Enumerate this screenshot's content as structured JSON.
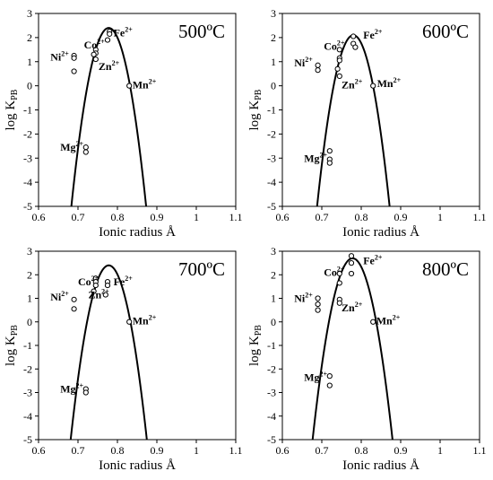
{
  "chart_data": [
    {
      "type": "scatter",
      "title": "500ºC",
      "xlabel": "Ionic radius Å",
      "ylabel": "log K",
      "ylabel_sub": "PB",
      "xlim": [
        0.6,
        1.1
      ],
      "ylim": [
        -5,
        3
      ],
      "xticks": [
        "0.6",
        "0.7",
        "0.8",
        "0.9",
        "1",
        "1.1"
      ],
      "yticks": [
        "-5",
        "-4",
        "-3",
        "-2",
        "-1",
        "0",
        "1",
        "2",
        "3"
      ],
      "curve": {
        "r0": 0.778,
        "peak": 2.4,
        "zero_half_width": 0.054
      },
      "points": [
        [
          0.69,
          1.25
        ],
        [
          0.69,
          1.15
        ],
        [
          0.69,
          0.6
        ],
        [
          0.745,
          1.5
        ],
        [
          0.745,
          1.35
        ],
        [
          0.745,
          1.1
        ],
        [
          0.74,
          1.3
        ],
        [
          0.78,
          2.25
        ],
        [
          0.78,
          2.15
        ],
        [
          0.775,
          1.9
        ],
        [
          0.83,
          0.0
        ],
        [
          0.72,
          -2.55
        ],
        [
          0.72,
          -2.75
        ]
      ],
      "ion_labels": [
        {
          "text": "Co",
          "charge": "2+",
          "x": 0.715,
          "y": 1.55
        },
        {
          "text": "Ni",
          "charge": "2+",
          "x": 0.63,
          "y": 1.05
        },
        {
          "text": "Zn",
          "charge": "2+",
          "x": 0.752,
          "y": 0.65
        },
        {
          "text": "Fe",
          "charge": "2+",
          "x": 0.79,
          "y": 2.05
        },
        {
          "text": "Mn",
          "charge": "2+",
          "x": 0.838,
          "y": -0.1
        },
        {
          "text": "Mg",
          "charge": "2+",
          "x": 0.655,
          "y": -2.7
        }
      ]
    },
    {
      "type": "scatter",
      "title": "600ºC",
      "xlabel": "Ionic radius Å",
      "ylabel": "log K",
      "ylabel_sub": "PB",
      "xlim": [
        0.6,
        1.1
      ],
      "ylim": [
        -5,
        3
      ],
      "xticks": [
        "0.6",
        "0.7",
        "0.8",
        "0.9",
        "1",
        "1.1"
      ],
      "yticks": [
        "-5",
        "-4",
        "-3",
        "-2",
        "-1",
        "0",
        "1",
        "2",
        "3"
      ],
      "curve": {
        "r0": 0.78,
        "peak": 2.1,
        "zero_half_width": 0.05
      },
      "points": [
        [
          0.69,
          0.85
        ],
        [
          0.69,
          0.65
        ],
        [
          0.745,
          1.5
        ],
        [
          0.745,
          1.15
        ],
        [
          0.745,
          1.05
        ],
        [
          0.74,
          0.7
        ],
        [
          0.745,
          0.4
        ],
        [
          0.78,
          2.05
        ],
        [
          0.78,
          1.75
        ],
        [
          0.785,
          1.6
        ],
        [
          0.83,
          0.0
        ],
        [
          0.72,
          -2.7
        ],
        [
          0.72,
          -3.05
        ],
        [
          0.72,
          -3.2
        ]
      ],
      "ion_labels": [
        {
          "text": "Co",
          "charge": "2+",
          "x": 0.705,
          "y": 1.5
        },
        {
          "text": "Ni",
          "charge": "2+",
          "x": 0.63,
          "y": 0.8
        },
        {
          "text": "Zn",
          "charge": "2+",
          "x": 0.75,
          "y": -0.1
        },
        {
          "text": "Fe",
          "charge": "2+",
          "x": 0.805,
          "y": 1.95
        },
        {
          "text": "Mn",
          "charge": "2+",
          "x": 0.84,
          "y": -0.05
        },
        {
          "text": "Mg",
          "charge": "2+",
          "x": 0.655,
          "y": -3.15
        }
      ]
    },
    {
      "type": "scatter",
      "title": "700ºC",
      "xlabel": "Ionic radius Å",
      "ylabel": "log K",
      "ylabel_sub": "PB",
      "xlim": [
        0.6,
        1.1
      ],
      "ylim": [
        -5,
        3
      ],
      "xticks": [
        "0.6",
        "0.7",
        "0.8",
        "0.9",
        "1",
        "1.1"
      ],
      "yticks": [
        "-5",
        "-4",
        "-3",
        "-2",
        "-1",
        "0",
        "1",
        "2",
        "3"
      ],
      "curve": {
        "r0": 0.778,
        "peak": 2.4,
        "zero_half_width": 0.055
      },
      "points": [
        [
          0.69,
          0.95
        ],
        [
          0.69,
          0.55
        ],
        [
          0.745,
          1.85
        ],
        [
          0.745,
          1.7
        ],
        [
          0.745,
          1.55
        ],
        [
          0.74,
          1.3
        ],
        [
          0.775,
          1.7
        ],
        [
          0.775,
          1.55
        ],
        [
          0.77,
          1.15
        ],
        [
          0.83,
          0.0
        ],
        [
          0.72,
          -2.85
        ],
        [
          0.72,
          -3.0
        ]
      ],
      "ion_labels": [
        {
          "text": "Co",
          "charge": "2+",
          "x": 0.7,
          "y": 1.55
        },
        {
          "text": "Ni",
          "charge": "2+",
          "x": 0.63,
          "y": 0.9
        },
        {
          "text": "Zn",
          "charge": "2+",
          "x": 0.726,
          "y": 1.0
        },
        {
          "text": "Fe",
          "charge": "2+",
          "x": 0.79,
          "y": 1.55
        },
        {
          "text": "Mn",
          "charge": "2+",
          "x": 0.838,
          "y": -0.1
        },
        {
          "text": "Mg",
          "charge": "2+",
          "x": 0.655,
          "y": -3.0
        }
      ]
    },
    {
      "type": "scatter",
      "title": "800ºC",
      "xlabel": "Ionic radius Å",
      "ylabel": "log K",
      "ylabel_sub": "PB",
      "xlim": [
        0.6,
        1.1
      ],
      "ylim": [
        -5,
        3
      ],
      "xticks": [
        "0.6",
        "0.7",
        "0.8",
        "0.9",
        "1",
        "1.1"
      ],
      "yticks": [
        "-5",
        "-4",
        "-3",
        "-2",
        "-1",
        "0",
        "1",
        "2",
        "3"
      ],
      "curve": {
        "r0": 0.778,
        "peak": 2.7,
        "zero_half_width": 0.06
      },
      "points": [
        [
          0.69,
          1.0
        ],
        [
          0.69,
          0.75
        ],
        [
          0.69,
          0.5
        ],
        [
          0.745,
          2.05
        ],
        [
          0.745,
          1.65
        ],
        [
          0.745,
          0.95
        ],
        [
          0.745,
          0.8
        ],
        [
          0.775,
          2.8
        ],
        [
          0.775,
          2.5
        ],
        [
          0.775,
          2.05
        ],
        [
          0.83,
          0.0
        ],
        [
          0.72,
          -2.3
        ],
        [
          0.72,
          -2.7
        ]
      ],
      "ion_labels": [
        {
          "text": "Co",
          "charge": "2+",
          "x": 0.705,
          "y": 1.95
        },
        {
          "text": "Ni",
          "charge": "2+",
          "x": 0.63,
          "y": 0.85
        },
        {
          "text": "Zn",
          "charge": "2+",
          "x": 0.75,
          "y": 0.45
        },
        {
          "text": "Fe",
          "charge": "2+",
          "x": 0.805,
          "y": 2.45
        },
        {
          "text": "Mn",
          "charge": "2+",
          "x": 0.838,
          "y": -0.1
        },
        {
          "text": "Mg",
          "charge": "2+",
          "x": 0.655,
          "y": -2.5
        }
      ]
    }
  ]
}
